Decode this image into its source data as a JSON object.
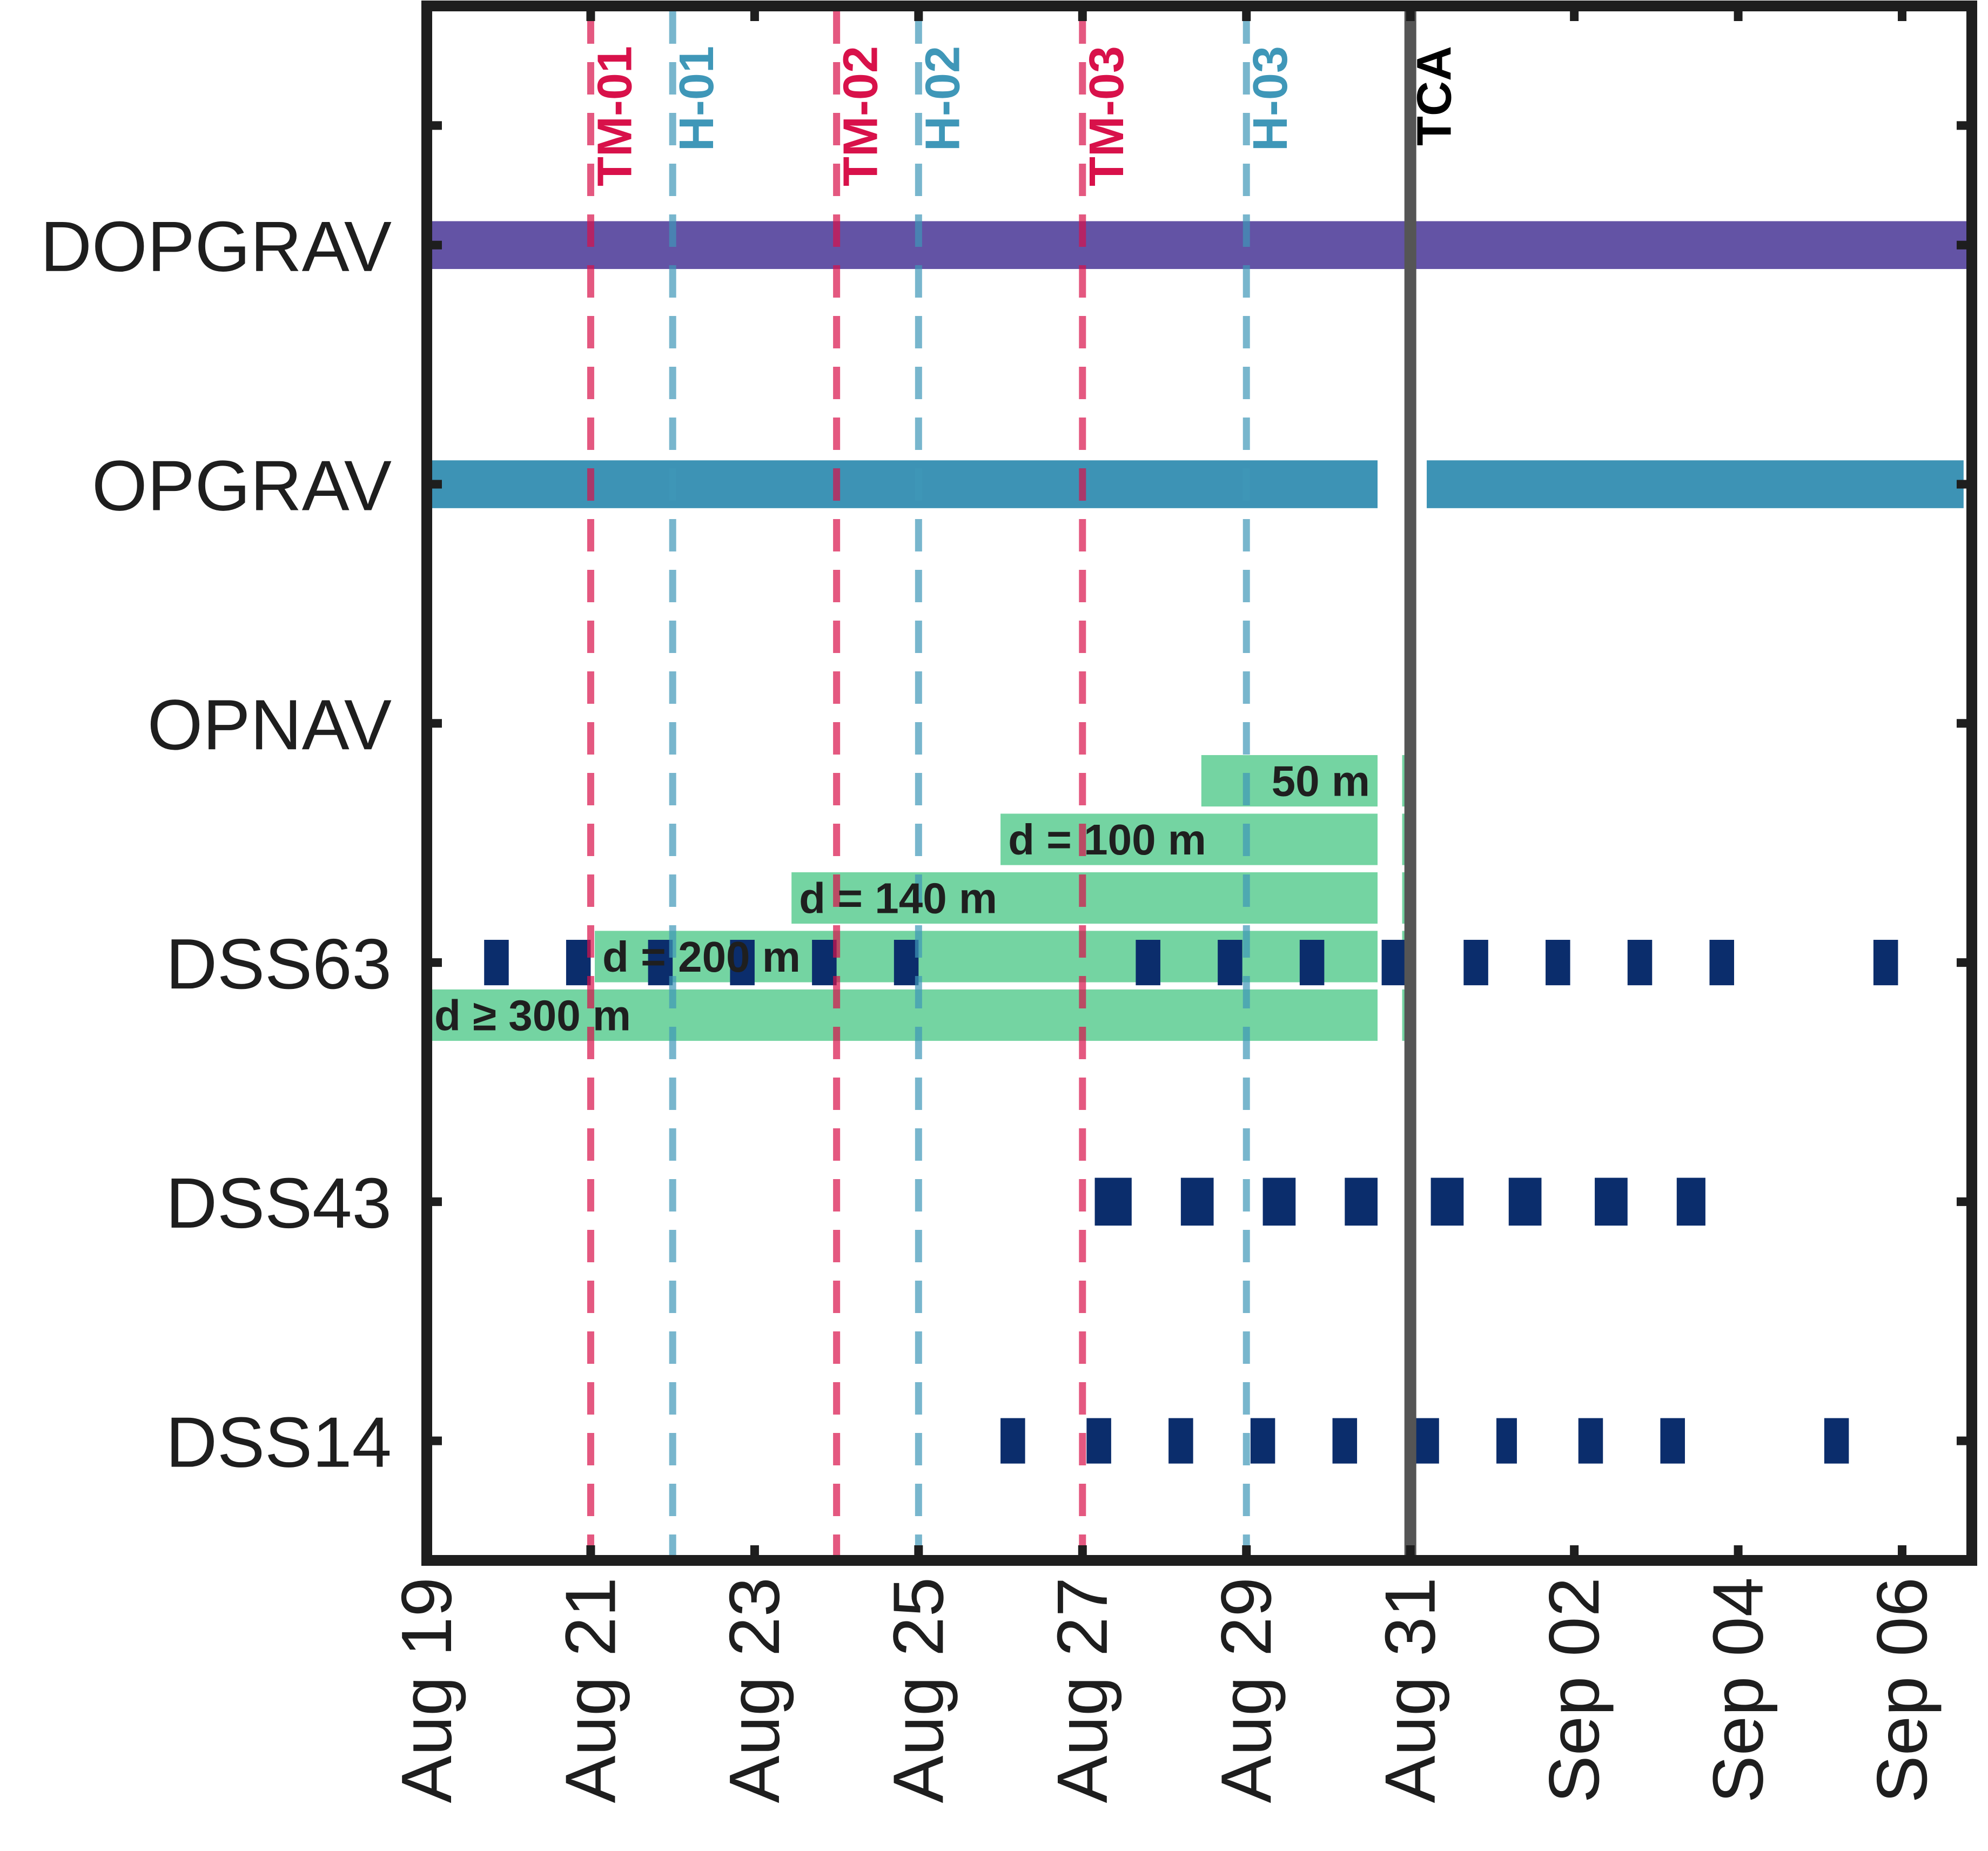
{
  "chart_data": {
    "type": "timeline",
    "x_axis": {
      "unit": "days since Aug 19",
      "range": [
        0,
        18.85
      ],
      "ticks": [
        {
          "day": 0,
          "label": "Aug 19"
        },
        {
          "day": 2,
          "label": "Aug 21"
        },
        {
          "day": 4,
          "label": "Aug 23"
        },
        {
          "day": 6,
          "label": "Aug 25"
        },
        {
          "day": 8,
          "label": "Aug 27"
        },
        {
          "day": 10,
          "label": "Aug 29"
        },
        {
          "day": 12,
          "label": "Aug 31"
        },
        {
          "day": 14,
          "label": "Sep 02"
        },
        {
          "day": 16,
          "label": "Sep 04"
        },
        {
          "day": 18,
          "label": "Sep 06"
        }
      ]
    },
    "y_axis": {
      "range": [
        0.5,
        7.0
      ],
      "rows": [
        {
          "value": 6,
          "label": "DOPGRAV"
        },
        {
          "value": 5,
          "label": "OPGRAV"
        },
        {
          "value": 4,
          "label": "OPNAV"
        },
        {
          "value": 3,
          "label": "DSS63"
        },
        {
          "value": 2,
          "label": "DSS43"
        },
        {
          "value": 1,
          "label": "DSS14"
        }
      ],
      "extra_ticks": [
        6.5,
        7.0
      ]
    },
    "events": [
      {
        "label": "TM-01",
        "day": 2.0,
        "color": "#d8114a",
        "style": "dashed"
      },
      {
        "label": "H-01",
        "day": 3.0,
        "color": "#3f97b8",
        "style": "dashed"
      },
      {
        "label": "TM-02",
        "day": 5.0,
        "color": "#d8114a",
        "style": "dashed"
      },
      {
        "label": "H-02",
        "day": 6.0,
        "color": "#3f97b8",
        "style": "dashed"
      },
      {
        "label": "TM-03",
        "day": 8.0,
        "color": "#d8114a",
        "style": "dashed"
      },
      {
        "label": "H-03",
        "day": 10.0,
        "color": "#3f97b8",
        "style": "dashed"
      },
      {
        "label": "TCA",
        "day": 12.0,
        "color": "#000000",
        "style": "solid"
      }
    ],
    "series": [
      {
        "name": "DOPGRAV",
        "color": "#6353a5",
        "segments": [
          [
            0,
            18.85
          ]
        ]
      },
      {
        "name": "OPGRAV",
        "color": "#3d93b5",
        "segments": [
          [
            0,
            11.6
          ],
          [
            12.2,
            18.75
          ]
        ]
      },
      {
        "name": "OPNAV",
        "color": "#74d4a2",
        "bars": [
          {
            "label": "50 m",
            "start": 9.45,
            "end": 11.6,
            "center": 3.76
          },
          {
            "label": "d = 100 m",
            "start": 7.0,
            "end": 11.6,
            "center": 3.515
          },
          {
            "label": "d =  140 m",
            "start": 4.45,
            "end": 11.6,
            "center": 3.27
          },
          {
            "label": "d =  200 m",
            "start": 2.05,
            "end": 11.6,
            "center": 3.025
          },
          {
            "label": "d ≥ 300 m",
            "start": 0.0,
            "end": 11.6,
            "center": 2.78
          }
        ],
        "tca_stub": [
          11.9,
          12.05
        ]
      },
      {
        "name": "DSS63",
        "color": "#0b2d6c",
        "passes": [
          [
            0.7,
            1.0
          ],
          [
            1.7,
            2.0
          ],
          [
            2.7,
            3.0
          ],
          [
            3.7,
            4.0
          ],
          [
            4.7,
            5.0
          ],
          [
            5.7,
            6.0
          ],
          [
            8.65,
            8.95
          ],
          [
            9.65,
            9.95
          ],
          [
            10.65,
            10.95
          ],
          [
            11.65,
            11.95
          ],
          [
            12.65,
            12.95
          ],
          [
            13.65,
            13.95
          ],
          [
            14.65,
            14.95
          ],
          [
            15.65,
            15.95
          ],
          [
            17.65,
            17.95
          ]
        ]
      },
      {
        "name": "DSS43",
        "color": "#0b2d6c",
        "passes": [
          [
            8.15,
            8.6
          ],
          [
            9.2,
            9.6
          ],
          [
            10.2,
            10.6
          ],
          [
            11.2,
            11.6
          ],
          [
            12.25,
            12.65
          ],
          [
            13.2,
            13.6
          ],
          [
            14.25,
            14.65
          ],
          [
            15.25,
            15.6
          ]
        ]
      },
      {
        "name": "DSS14",
        "color": "#0b2d6c",
        "passes": [
          [
            7.0,
            7.3
          ],
          [
            8.05,
            8.35
          ],
          [
            9.05,
            9.35
          ],
          [
            10.05,
            10.35
          ],
          [
            11.05,
            11.35
          ],
          [
            12.05,
            12.35
          ],
          [
            13.05,
            13.3
          ],
          [
            14.05,
            14.35
          ],
          [
            15.05,
            15.35
          ],
          [
            17.05,
            17.35
          ]
        ]
      }
    ]
  }
}
